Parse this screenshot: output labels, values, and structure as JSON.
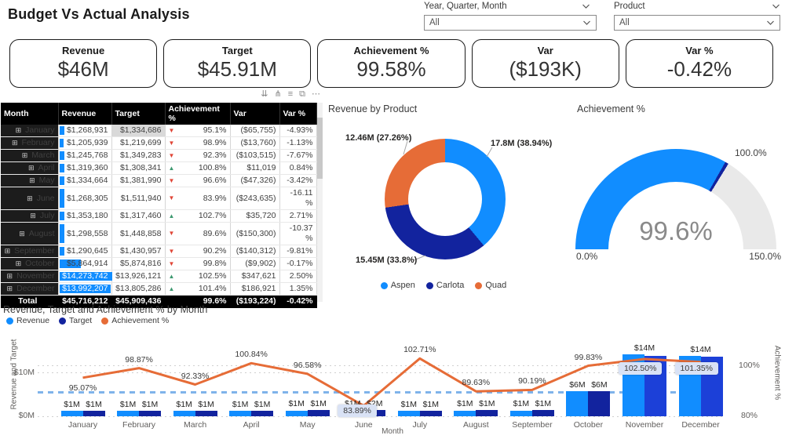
{
  "colors": {
    "blue": "#118DFF",
    "navy": "#12239E",
    "navy_bright": "#1C40D8",
    "orange": "#E66C37",
    "red_down": "#E04536",
    "green_up": "#3D9970",
    "gauge_rest": "#E9E9E9"
  },
  "header": {
    "title": "Budget Vs Actual Analysis",
    "slicers": [
      {
        "label": "Year, Quarter, Month",
        "value": "All"
      },
      {
        "label": "Product",
        "value": "All"
      }
    ]
  },
  "kpis": [
    {
      "label": "Revenue",
      "value": "$46M"
    },
    {
      "label": "Target",
      "value": "$45.91M"
    },
    {
      "label": "Achievement %",
      "value": "99.58%"
    },
    {
      "label": "Var",
      "value": "($193K)"
    },
    {
      "label": "Var %",
      "value": "-0.42%"
    }
  ],
  "table": {
    "toolbar": [
      {
        "name": "drill-down-icon",
        "glyph": "⇊"
      },
      {
        "name": "expand-hierarchy-icon",
        "glyph": "⋔"
      },
      {
        "name": "filter-icon",
        "glyph": "≡"
      },
      {
        "name": "focus-mode-icon",
        "glyph": "⧉"
      },
      {
        "name": "more-options-icon",
        "glyph": "⋯"
      }
    ],
    "columns": [
      "Month",
      "Revenue",
      "Target",
      "Achievement %",
      "Var",
      "Var %"
    ],
    "rows": [
      {
        "month": "January",
        "revenue": "$1,268,931",
        "target": "$1,334,686",
        "ach": "95.1%",
        "dir": "down",
        "var": "($65,755)",
        "varpct": "-4.93%",
        "bar": 9,
        "target_gray": true
      },
      {
        "month": "February",
        "revenue": "$1,205,939",
        "target": "$1,219,699",
        "ach": "98.9%",
        "dir": "down",
        "var": "($13,760)",
        "varpct": "-1.13%",
        "bar": 8
      },
      {
        "month": "March",
        "revenue": "$1,245,768",
        "target": "$1,349,283",
        "ach": "92.3%",
        "dir": "down",
        "var": "($103,515)",
        "varpct": "-7.67%",
        "bar": 9
      },
      {
        "month": "April",
        "revenue": "$1,319,360",
        "target": "$1,308,341",
        "ach": "100.8%",
        "dir": "up",
        "var": "$11,019",
        "varpct": "0.84%",
        "bar": 9
      },
      {
        "month": "May",
        "revenue": "$1,334,664",
        "target": "$1,381,990",
        "ach": "96.6%",
        "dir": "down",
        "var": "($47,326)",
        "varpct": "-3.42%",
        "bar": 9
      },
      {
        "month": "June",
        "revenue": "$1,268,305",
        "target": "$1,511,940",
        "ach": "83.9%",
        "dir": "down",
        "var": "($243,635)",
        "varpct": "-16.11 %",
        "bar": 9,
        "wrap": true
      },
      {
        "month": "July",
        "revenue": "$1,353,180",
        "target": "$1,317,460",
        "ach": "102.7%",
        "dir": "up",
        "var": "$35,720",
        "varpct": "2.71%",
        "bar": 9
      },
      {
        "month": "August",
        "revenue": "$1,298,558",
        "target": "$1,448,858",
        "ach": "89.6%",
        "dir": "down",
        "var": "($150,300)",
        "varpct": "-10.37 %",
        "bar": 9,
        "wrap": true
      },
      {
        "month": "September",
        "revenue": "$1,290,645",
        "target": "$1,430,957",
        "ach": "90.2%",
        "dir": "down",
        "var": "($140,312)",
        "varpct": "-9.81%",
        "bar": 9
      },
      {
        "month": "October",
        "revenue": "$5,864,914",
        "target": "$5,874,816",
        "ach": "99.8%",
        "dir": "down",
        "var": "($9,902)",
        "varpct": "-0.17%",
        "bar": 41
      },
      {
        "month": "November",
        "revenue": "$14,273,742",
        "target": "$13,926,121",
        "ach": "102.5%",
        "dir": "up",
        "var": "$347,621",
        "varpct": "2.50%",
        "bar": 100,
        "white_text": true
      },
      {
        "month": "December",
        "revenue": "$13,992,207",
        "target": "$13,805,286",
        "ach": "101.4%",
        "dir": "up",
        "var": "$186,921",
        "varpct": "1.35%",
        "bar": 98,
        "white_text": true
      }
    ],
    "total": {
      "month": "Total",
      "revenue": "$45,716,212",
      "target": "$45,909,436",
      "ach": "99.6%",
      "var": "($193,224)",
      "varpct": "-0.42%"
    }
  },
  "chart_data": [
    {
      "id": "donut",
      "type": "pie",
      "title": "Revenue by Product",
      "legend_position": "bottom",
      "series": [
        {
          "name": "Aspen",
          "value_label": "17.8M",
          "pct": 38.94,
          "color": "#118DFF",
          "callout": "17.8M (38.94%)"
        },
        {
          "name": "Carlota",
          "value_label": "15.45M",
          "pct": 33.8,
          "color": "#12239E",
          "callout": "15.45M (33.8%)"
        },
        {
          "name": "Quad",
          "value_label": "12.46M",
          "pct": 27.26,
          "color": "#E66C37",
          "callout": "12.46M (27.26%)"
        }
      ]
    },
    {
      "id": "gauge",
      "type": "gauge",
      "title": "Achievement %",
      "value": 99.6,
      "value_label": "99.6%",
      "min": 0,
      "max": 150,
      "target": 100,
      "min_label": "0.0%",
      "max_label": "150.0%",
      "target_label": "100.0%"
    },
    {
      "id": "combo",
      "type": "bar+line",
      "title": "Revenue, Target and Achievement % by Month",
      "legend": [
        "Revenue",
        "Target",
        "Achievement %"
      ],
      "categories": [
        "January",
        "February",
        "March",
        "April",
        "May",
        "June",
        "July",
        "August",
        "September",
        "October",
        "November",
        "December"
      ],
      "series": [
        {
          "name": "Revenue",
          "values_M": [
            1.269,
            1.206,
            1.246,
            1.319,
            1.335,
            1.268,
            1.353,
            1.299,
            1.291,
            5.865,
            14.274,
            13.992
          ],
          "labels": [
            "$1M",
            "$1M",
            "$1M",
            "$1M",
            "$1M",
            "$1M",
            "$1M",
            "$1M",
            "$1M",
            "$6M",
            "$14M",
            "$14M"
          ]
        },
        {
          "name": "Target",
          "values_M": [
            1.335,
            1.22,
            1.349,
            1.308,
            1.382,
            1.512,
            1.317,
            1.449,
            1.431,
            5.875,
            13.926,
            13.805
          ],
          "labels": [
            "$1M",
            "$1M",
            "$1M",
            "$1M",
            "$1M",
            "$2M",
            "$1M",
            "$1M",
            "$1M",
            "$6M",
            "",
            ""
          ]
        },
        {
          "name": "Achievement %",
          "values_pct": [
            95.07,
            98.87,
            92.33,
            100.84,
            96.58,
            83.89,
            102.71,
            89.63,
            90.19,
            99.83,
            102.5,
            101.35
          ],
          "labels": [
            "95.07%",
            "98.87%",
            "92.33%",
            "100.84%",
            "96.58%",
            "83.89%",
            "102.71%",
            "89.63%",
            "90.19%",
            "99.83%",
            "102.50%",
            "101.35%"
          ]
        }
      ],
      "boxed_label_indexes": [
        5,
        10,
        11
      ],
      "below_label_indexes": [
        0
      ],
      "highlight_target_indexes": [
        10,
        11
      ],
      "y_left": {
        "label": "Revenue and Target",
        "ticks": [
          "$0M",
          "$10M"
        ]
      },
      "y_right": {
        "label": "Achievement %",
        "ticks": [
          "80%",
          "100%"
        ]
      },
      "x_label": "Month",
      "reference_line": {
        "style": "dashed",
        "color": "#7FB3EA"
      },
      "grid": "dotted"
    }
  ]
}
